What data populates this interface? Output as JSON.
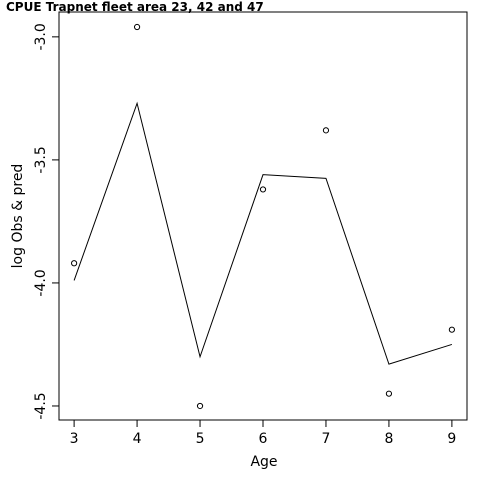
{
  "chart_data": {
    "type": "line",
    "title": "CPUE Trapnet fleet area 23, 42 and 47",
    "xlabel": "Age",
    "ylabel": "log Obs & pred",
    "x": [
      3,
      4,
      5,
      6,
      7,
      8,
      9
    ],
    "x_ticks": [
      "3",
      "4",
      "5",
      "6",
      "7",
      "8",
      "9"
    ],
    "y_ticks": [
      {
        "value": -3.0,
        "label": "-3.0"
      },
      {
        "value": -3.5,
        "label": "-3.5"
      },
      {
        "value": -4.0,
        "label": "-4.0"
      },
      {
        "value": -4.5,
        "label": "-4.5"
      }
    ],
    "xlim": [
      2.76,
      9.24
    ],
    "ylim": [
      -4.557,
      -2.899
    ],
    "series": [
      {
        "kind": "points",
        "marker": "open-circle",
        "values": [
          -3.92,
          -2.96,
          -4.5,
          -3.62,
          -3.38,
          -4.45,
          -4.19
        ]
      },
      {
        "kind": "line",
        "values": [
          -3.99,
          -3.27,
          -4.3,
          -3.56,
          -3.575,
          -4.33,
          -4.25
        ]
      }
    ],
    "grid": false,
    "legend": "none"
  }
}
